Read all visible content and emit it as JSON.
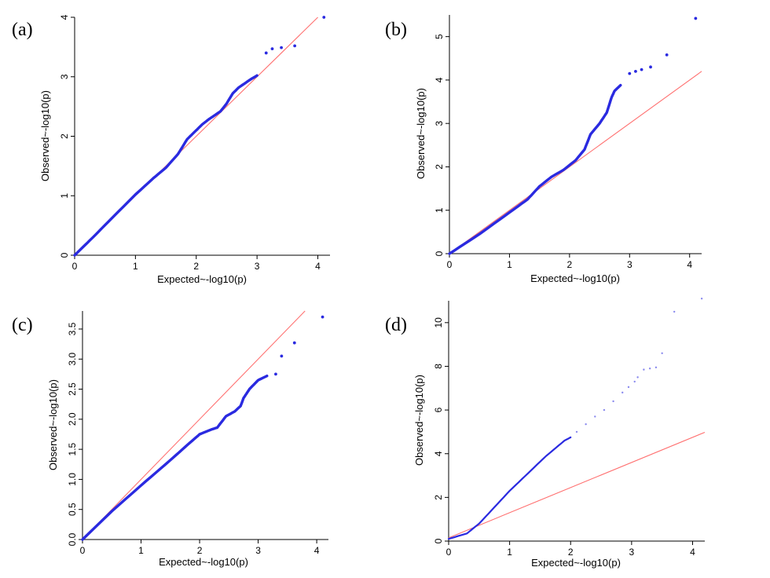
{
  "chart_data": [
    {
      "type": "scatter",
      "panel_label": "(a)",
      "xlabel": "Expected~-log10(p)",
      "ylabel": "Observed~-log10(p)",
      "xlim": [
        0,
        4.2
      ],
      "ylim": [
        0,
        4.0
      ],
      "xticks": [
        "0",
        "1",
        "2",
        "3",
        "4"
      ],
      "yticks": [
        "0",
        "1",
        "2",
        "3",
        "4"
      ],
      "reference_line": {
        "slope": 1,
        "intercept": 0,
        "color": "#ff7070"
      },
      "series": [
        {
          "color": "#2a2ae0",
          "curve": [
            [
              0,
              0
            ],
            [
              0.3,
              0.3
            ],
            [
              0.6,
              0.61
            ],
            [
              1.0,
              1.02
            ],
            [
              1.3,
              1.3
            ],
            [
              1.5,
              1.47
            ],
            [
              1.7,
              1.7
            ],
            [
              1.85,
              1.95
            ],
            [
              2.0,
              2.1
            ],
            [
              2.1,
              2.2
            ],
            [
              2.2,
              2.28
            ],
            [
              2.3,
              2.35
            ],
            [
              2.4,
              2.42
            ],
            [
              2.5,
              2.55
            ],
            [
              2.6,
              2.72
            ],
            [
              2.7,
              2.82
            ],
            [
              2.8,
              2.89
            ],
            [
              2.9,
              2.96
            ],
            [
              3.0,
              3.02
            ]
          ],
          "points": [
            [
              3.15,
              3.4
            ],
            [
              3.25,
              3.47
            ],
            [
              3.4,
              3.49
            ],
            [
              3.62,
              3.52
            ],
            [
              4.1,
              4.0
            ]
          ]
        }
      ]
    },
    {
      "type": "scatter",
      "panel_label": "(b)",
      "xlabel": "Expected~-log10(p)",
      "ylabel": "Observed~-log10(p)",
      "xlim": [
        0,
        4.2
      ],
      "ylim": [
        0,
        5.5
      ],
      "xticks": [
        "0",
        "1",
        "2",
        "3",
        "4"
      ],
      "yticks": [
        "0",
        "1",
        "2",
        "3",
        "4",
        "5"
      ],
      "reference_line": {
        "slope": 1,
        "intercept": 0,
        "color": "#ff7070"
      },
      "series": [
        {
          "color": "#2a2ae0",
          "curve": [
            [
              0,
              0
            ],
            [
              0.5,
              0.45
            ],
            [
              1.0,
              0.95
            ],
            [
              1.3,
              1.25
            ],
            [
              1.5,
              1.55
            ],
            [
              1.7,
              1.77
            ],
            [
              1.9,
              1.93
            ],
            [
              2.1,
              2.15
            ],
            [
              2.25,
              2.4
            ],
            [
              2.35,
              2.75
            ],
            [
              2.5,
              3.0
            ],
            [
              2.62,
              3.25
            ],
            [
              2.7,
              3.6
            ],
            [
              2.75,
              3.75
            ],
            [
              2.85,
              3.88
            ]
          ],
          "points": [
            [
              3.0,
              4.15
            ],
            [
              3.1,
              4.2
            ],
            [
              3.2,
              4.24
            ],
            [
              3.35,
              4.3
            ],
            [
              3.62,
              4.58
            ],
            [
              4.1,
              5.42
            ]
          ]
        }
      ]
    },
    {
      "type": "scatter",
      "panel_label": "(c)",
      "xlabel": "Expected~-log10(p)",
      "ylabel": "Observed~-log10(p)",
      "xlim": [
        0,
        4.2
      ],
      "ylim": [
        0,
        3.8
      ],
      "xticks": [
        "0",
        "1",
        "2",
        "3",
        "4"
      ],
      "yticks": [
        "0.0",
        "0.5",
        "1.0",
        "1.5",
        "2.0",
        "2.5",
        "3.0",
        "3.5"
      ],
      "reference_line": {
        "slope": 1,
        "intercept": 0,
        "color": "#ff7070"
      },
      "series": [
        {
          "color": "#2a2ae0",
          "curve": [
            [
              0,
              0
            ],
            [
              0.5,
              0.47
            ],
            [
              1.0,
              0.9
            ],
            [
              1.5,
              1.32
            ],
            [
              1.8,
              1.58
            ],
            [
              2.0,
              1.75
            ],
            [
              2.2,
              1.83
            ],
            [
              2.3,
              1.86
            ],
            [
              2.45,
              2.05
            ],
            [
              2.6,
              2.13
            ],
            [
              2.7,
              2.22
            ],
            [
              2.75,
              2.35
            ],
            [
              2.85,
              2.5
            ],
            [
              3.0,
              2.65
            ],
            [
              3.15,
              2.72
            ]
          ],
          "points": [
            [
              3.3,
              2.75
            ],
            [
              3.4,
              3.05
            ],
            [
              3.62,
              3.27
            ],
            [
              4.1,
              3.7
            ]
          ]
        }
      ]
    },
    {
      "type": "scatter",
      "panel_label": "(d)",
      "xlabel": "Expected~-log10(p)",
      "ylabel": "Observed~-log10(p)",
      "xlim": [
        0,
        4.2
      ],
      "ylim": [
        0,
        11
      ],
      "xticks": [
        "0",
        "1",
        "2",
        "3",
        "4"
      ],
      "yticks": [
        "0",
        "2",
        "4",
        "6",
        "8",
        "10"
      ],
      "reference_line": {
        "slope": 1.15,
        "intercept": 0.15,
        "color": "#ff7070"
      },
      "series": [
        {
          "color": "#2a2ae0",
          "curve": [
            [
              0,
              0.1
            ],
            [
              0.3,
              0.35
            ],
            [
              0.5,
              0.8
            ],
            [
              0.8,
              1.7
            ],
            [
              1.0,
              2.3
            ],
            [
              1.3,
              3.1
            ],
            [
              1.6,
              3.9
            ],
            [
              1.9,
              4.6
            ],
            [
              2.0,
              4.75
            ]
          ],
          "points": [
            [
              2.1,
              5.0
            ],
            [
              2.25,
              5.35
            ],
            [
              2.4,
              5.7
            ],
            [
              2.55,
              6.0
            ],
            [
              2.7,
              6.4
            ],
            [
              2.85,
              6.8
            ],
            [
              2.95,
              7.05
            ],
            [
              3.05,
              7.3
            ],
            [
              3.1,
              7.5
            ],
            [
              3.2,
              7.85
            ],
            [
              3.3,
              7.9
            ],
            [
              3.4,
              7.95
            ],
            [
              3.5,
              8.6
            ],
            [
              3.7,
              10.5
            ],
            [
              4.15,
              11.1
            ]
          ]
        }
      ]
    }
  ]
}
